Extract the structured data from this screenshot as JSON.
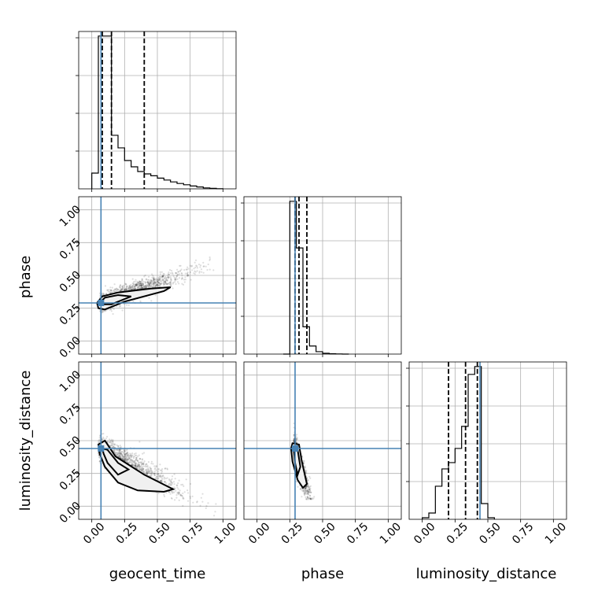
{
  "colors": {
    "truth": "#4682b4",
    "hist": "#000000",
    "scatter": "#000000",
    "grid": "#b0b0b0"
  },
  "chart_data": {
    "type": "corner",
    "parameters": [
      "geocent_time",
      "phase",
      "luminosity_distance"
    ],
    "tick_values": [
      0.0,
      0.25,
      0.5,
      0.75,
      1.0
    ],
    "tick_labels": [
      "0.00",
      "0.25",
      "0.50",
      "0.75",
      "1.00"
    ],
    "axis_range": [
      -0.1,
      1.1
    ],
    "grid": true,
    "truth": {
      "geocent_time": 0.07,
      "phase": 0.29,
      "luminosity_distance": 0.44
    },
    "histograms": [
      {
        "parameter": "geocent_time",
        "bin_edges": [
          0.0,
          0.05,
          0.1,
          0.15,
          0.2,
          0.25,
          0.3,
          0.35,
          0.4,
          0.45,
          0.5,
          0.55,
          0.6,
          0.65,
          0.7,
          0.75,
          0.8,
          0.85,
          0.9,
          0.95,
          1.0
        ],
        "counts": [
          0.1,
          0.97,
          0.97,
          0.34,
          0.26,
          0.18,
          0.14,
          0.11,
          0.095,
          0.083,
          0.068,
          0.056,
          0.044,
          0.034,
          0.026,
          0.018,
          0.012,
          0.006,
          0.003,
          0.001
        ],
        "quantiles": [
          0.08,
          0.15,
          0.4
        ]
      },
      {
        "parameter": "phase",
        "bin_edges": [
          0.2,
          0.25,
          0.3,
          0.35,
          0.4,
          0.45,
          0.5,
          0.55,
          0.6,
          0.65,
          0.7
        ],
        "counts": [
          0.0,
          0.95,
          0.66,
          0.17,
          0.05,
          0.015,
          0.005,
          0.002,
          0.001,
          0.0
        ],
        "quantiles": [
          0.29,
          0.32,
          0.38
        ]
      },
      {
        "parameter": "luminosity_distance",
        "bin_edges": [
          0.0,
          0.05,
          0.1,
          0.15,
          0.2,
          0.25,
          0.3,
          0.35,
          0.4,
          0.45,
          0.5,
          0.55
        ],
        "counts": [
          0.01,
          0.04,
          0.21,
          0.32,
          0.36,
          0.45,
          0.59,
          0.92,
          0.97,
          0.1,
          0.01
        ],
        "quantiles": [
          0.2,
          0.33,
          0.42
        ]
      }
    ],
    "scatter_panels": [
      {
        "x": "geocent_time",
        "y": "phase"
      },
      {
        "x": "geocent_time",
        "y": "luminosity_distance"
      },
      {
        "x": "phase",
        "y": "luminosity_distance"
      }
    ]
  }
}
